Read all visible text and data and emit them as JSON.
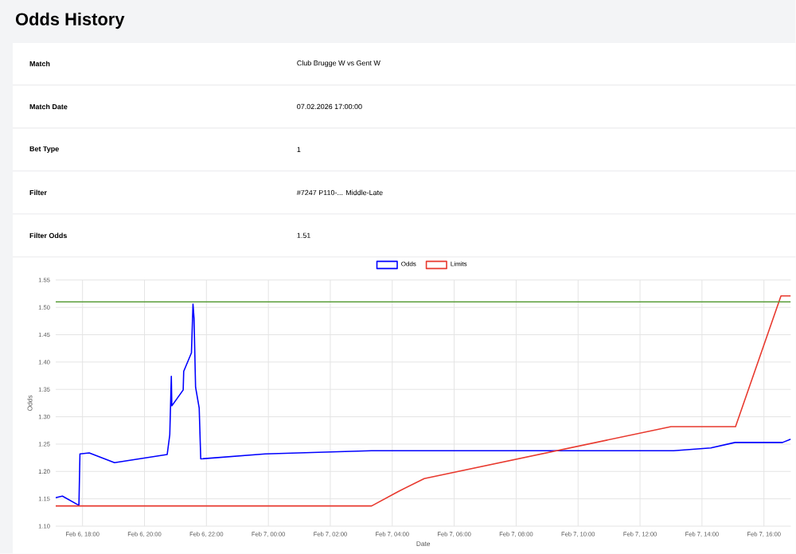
{
  "chart_data": {
    "type": "line",
    "title": "Odds History",
    "annotations": [
      "Match",
      "Club Brugge W vs Gent W",
      "Match Date",
      "07.02.2026 17:00:00",
      "Bet Type",
      "1",
      "Filter",
      "#7247 P110-... Middle-Late",
      "Filter Odds",
      "1.51"
    ],
    "xlabel": "Date",
    "ylabel": "Odds",
    "series": [
      {
        "name": "Odds",
        "color": "#0000ff",
        "x": [
          "2026-02-06T17:08",
          "2026-02-06T17:21",
          "2026-02-06T17:53",
          "2026-02-06T17:55",
          "2026-02-06T18:13",
          "2026-02-06T19:02",
          "2026-02-06T20:44",
          "2026-02-06T20:49",
          "2026-02-06T20:52",
          "2026-02-06T20:53",
          "2026-02-06T21:15",
          "2026-02-06T21:16",
          "2026-02-06T21:31",
          "2026-02-06T21:34",
          "2026-02-06T21:36",
          "2026-02-06T21:39",
          "2026-02-06T21:46",
          "2026-02-06T21:49",
          "2026-02-06T23:54",
          "2026-02-07T03:20",
          "2026-02-07T13:05",
          "2026-02-07T14:17",
          "2026-02-07T15:04",
          "2026-02-07T16:36",
          "2026-02-07T16:52"
        ],
        "values": [
          1.152,
          1.155,
          1.138,
          1.232,
          1.234,
          1.216,
          1.231,
          1.267,
          1.374,
          1.32,
          1.349,
          1.383,
          1.417,
          1.506,
          1.48,
          1.354,
          1.316,
          1.223,
          1.232,
          1.238,
          1.238,
          1.243,
          1.253,
          1.253,
          1.259
        ]
      },
      {
        "name": "Limits",
        "color": "#e8392e",
        "x": [
          "2026-02-06T17:08",
          "2026-02-07T03:20",
          "2026-02-07T04:11",
          "2026-02-07T05:02",
          "2026-02-07T13:00",
          "2026-02-07T15:05",
          "2026-02-07T16:33",
          "2026-02-07T16:52"
        ],
        "values": [
          1.137,
          1.137,
          1.163,
          1.187,
          1.282,
          1.282,
          1.521,
          1.521
        ]
      }
    ],
    "ref_lines": [
      {
        "axis": "y",
        "value": 1.51,
        "color": "#5a9e3a"
      }
    ],
    "xlim": [
      "2026-02-06T17:08",
      "2026-02-07T16:52"
    ],
    "xticks": [
      {
        "value": "2026-02-06T18:00",
        "label": "Feb 6, 18:00"
      },
      {
        "value": "2026-02-06T20:00",
        "label": "Feb 6, 20:00"
      },
      {
        "value": "2026-02-06T22:00",
        "label": "Feb 6, 22:00"
      },
      {
        "value": "2026-02-07T00:00",
        "label": "Feb 7, 00:00"
      },
      {
        "value": "2026-02-07T02:00",
        "label": "Feb 7, 02:00"
      },
      {
        "value": "2026-02-07T04:00",
        "label": "Feb 7, 04:00"
      },
      {
        "value": "2026-02-07T06:00",
        "label": "Feb 7, 06:00"
      },
      {
        "value": "2026-02-07T08:00",
        "label": "Feb 7, 08:00"
      },
      {
        "value": "2026-02-07T10:00",
        "label": "Feb 7, 10:00"
      },
      {
        "value": "2026-02-07T12:00",
        "label": "Feb 7, 12:00"
      },
      {
        "value": "2026-02-07T14:00",
        "label": "Feb 7, 14:00"
      },
      {
        "value": "2026-02-07T16:00",
        "label": "Feb 7, 16:00"
      }
    ],
    "ylim": [
      1.1,
      1.55
    ],
    "yticks": [
      {
        "value": 1.1,
        "label": "1.10"
      },
      {
        "value": 1.15,
        "label": "1.15"
      },
      {
        "value": 1.2,
        "label": "1.20"
      },
      {
        "value": 1.25,
        "label": "1.25"
      },
      {
        "value": 1.3,
        "label": "1.30"
      },
      {
        "value": 1.35,
        "label": "1.35"
      },
      {
        "value": 1.4,
        "label": "1.40"
      },
      {
        "value": 1.45,
        "label": "1.45"
      },
      {
        "value": 1.5,
        "label": "1.50"
      },
      {
        "value": 1.55,
        "label": "1.55"
      }
    ],
    "grid": true,
    "legend": "top",
    "marker": "none",
    "line_style": "solid"
  }
}
